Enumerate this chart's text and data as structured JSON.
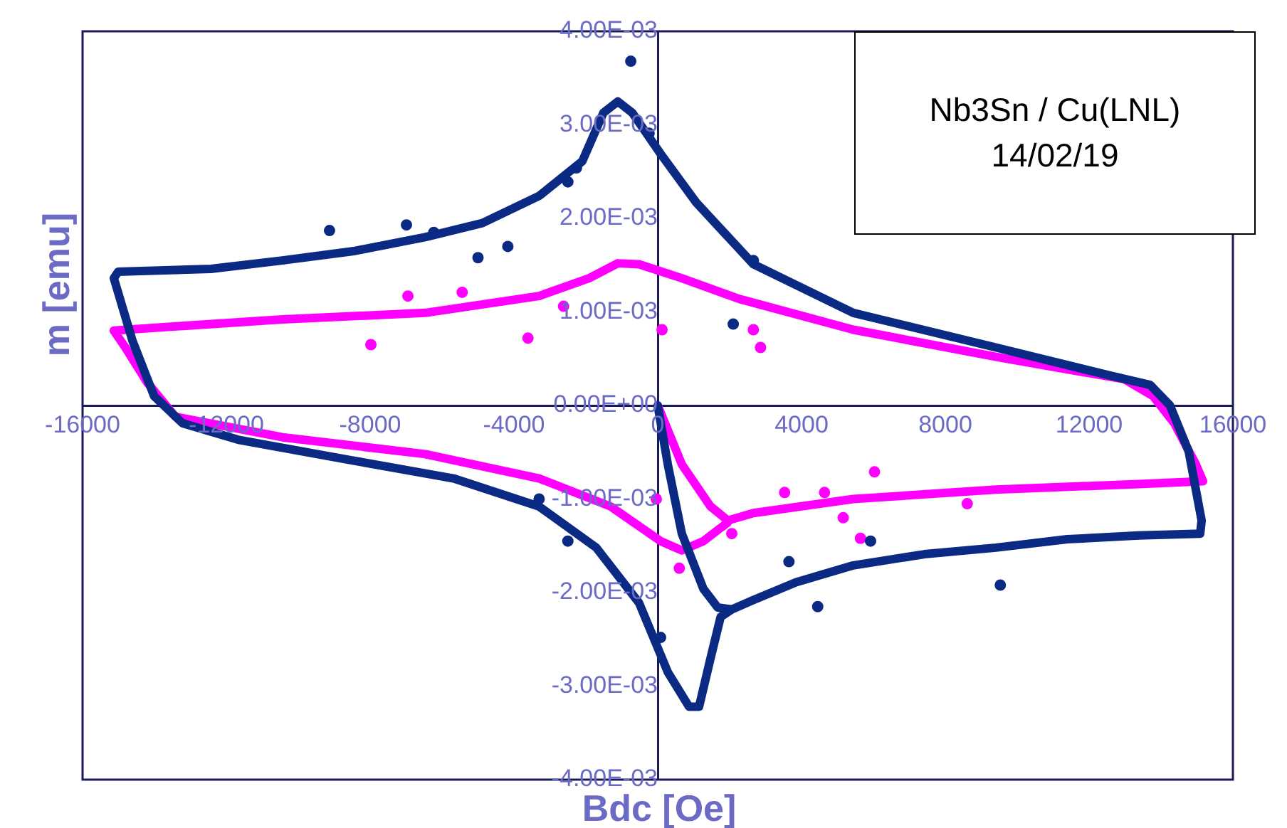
{
  "chart_data": {
    "type": "scatter",
    "xlabel": "Bdc [Oe]",
    "ylabel": "m [emu]",
    "annotations": [
      "Nb3Sn / Cu(LNL)",
      "14/02/19"
    ],
    "xlim": [
      -16000,
      16000
    ],
    "xticks": [
      -16000,
      -12000,
      -8000,
      -4000,
      0,
      4000,
      8000,
      12000,
      16000
    ],
    "ylim": [
      -0.004,
      0.004
    ],
    "yticks": [
      {
        "value": -0.004,
        "label": "-4.00E-03"
      },
      {
        "value": -0.003,
        "label": "-3.00E-03"
      },
      {
        "value": -0.002,
        "label": "-2.00E-03"
      },
      {
        "value": -0.001,
        "label": "-1.00E-03"
      },
      {
        "value": 0,
        "label": "0.00E+00"
      },
      {
        "value": 0.001,
        "label": "1.00E-03"
      },
      {
        "value": 0.002,
        "label": "2.00E-03"
      },
      {
        "value": 0.003,
        "label": "3.00E-03"
      },
      {
        "value": 0.004,
        "label": "4.00E-03"
      }
    ],
    "grid": false,
    "legend": false,
    "series": [
      {
        "type": "line",
        "color": "#0b2a84",
        "marker": "none",
        "x": [
          0,
          280,
          670,
          1270,
          1670,
          2060,
          2660,
          3850,
          5440,
          7420,
          9410,
          11390,
          13380,
          15090,
          15130,
          14770,
          14250,
          13700,
          12580,
          9410,
          5440,
          2660,
          1070,
          80,
          -710,
          -1110,
          -1510,
          -2100,
          -3300,
          -4880,
          -6470,
          -8460,
          -10440,
          -12430,
          -15010,
          -15130,
          -14610,
          -14010,
          -13220,
          -11630,
          -8460,
          -5680,
          -3300,
          -1710,
          -520,
          280,
          870,
          1150,
          1470,
          1750,
          2060
        ],
        "values": [
          0,
          -0.00063,
          -0.00137,
          -0.00196,
          -0.00216,
          -0.00218,
          -0.00208,
          -0.00189,
          -0.00171,
          -0.00159,
          -0.00152,
          -0.00143,
          -0.00139,
          -0.00137,
          -0.00123,
          -0.00049,
          0,
          0.00022,
          0.00032,
          0.00062,
          0.00099,
          0.00151,
          0.00217,
          0.00269,
          0.00313,
          0.00325,
          0.00313,
          0.00261,
          0.00224,
          0.00195,
          0.0018,
          0.00165,
          0.00155,
          0.00146,
          0.00143,
          0.00136,
          0.00069,
          0.0001,
          -0.00019,
          -0.00037,
          -0.00059,
          -0.00078,
          -0.00108,
          -0.00152,
          -0.00211,
          -0.00285,
          -0.00322,
          -0.00322,
          -0.0027,
          -0.00226,
          -0.00218
        ]
      },
      {
        "type": "line",
        "color": "#ff00ff",
        "marker": "none",
        "x": [
          0,
          670,
          1470,
          1950,
          2660,
          5440,
          9410,
          13380,
          15170,
          14970,
          14370,
          13780,
          12980,
          9410,
          5440,
          2260,
          670,
          -520,
          -1110,
          -1910,
          -3300,
          -6470,
          -10440,
          -13620,
          -15130,
          -14810,
          -14210,
          -13420,
          -10440,
          -6470,
          -3300,
          -1310,
          80,
          670,
          1270,
          1950
        ],
        "values": [
          0,
          -0.00063,
          -0.00108,
          -0.00123,
          -0.00115,
          -0.001,
          -0.0009,
          -0.00084,
          -0.00081,
          -0.00063,
          -0.00019,
          0.0001,
          0.00028,
          0.00052,
          0.00081,
          0.00114,
          0.00136,
          0.00151,
          0.00152,
          0.00136,
          0.00117,
          0.00099,
          0.00092,
          0.00084,
          0.0008,
          0.00062,
          0.00025,
          -0.00012,
          -0.00034,
          -0.00052,
          -0.00078,
          -0.00108,
          -0.00145,
          -0.00155,
          -0.00145,
          -0.00125
        ]
      },
      {
        "type": "scatter",
        "color": "#0b2a84",
        "marker": "circle",
        "x": [
          -9130,
          -6990,
          -6230,
          -5000,
          -4170,
          -2500,
          -2260,
          -750,
          -240,
          2660,
          2100,
          -3300,
          -2500,
          3650,
          4450,
          5920,
          9530,
          80
        ],
        "values": [
          0.00187,
          0.00193,
          0.00185,
          0.00158,
          0.0017,
          0.00239,
          0.00254,
          0.00368,
          0.00291,
          0.00155,
          0.00087,
          -0.001,
          -0.00145,
          -0.00167,
          -0.00215,
          -0.00145,
          -0.00192,
          -0.00248
        ]
      },
      {
        "type": "scatter",
        "color": "#ff00ff",
        "marker": "circle",
        "x": [
          -7980,
          -6950,
          -5440,
          -3610,
          -2620,
          120,
          2660,
          2860,
          -40,
          600,
          2060,
          3530,
          4640,
          5160,
          6030,
          5640,
          8610
        ],
        "values": [
          0.00065,
          0.00117,
          0.00121,
          0.00072,
          0.00106,
          0.00081,
          0.00081,
          0.00062,
          -0.001,
          -0.00174,
          -0.00137,
          -0.00093,
          -0.00093,
          -0.0012,
          -0.00071,
          -0.00142,
          -0.00105
        ]
      }
    ]
  }
}
